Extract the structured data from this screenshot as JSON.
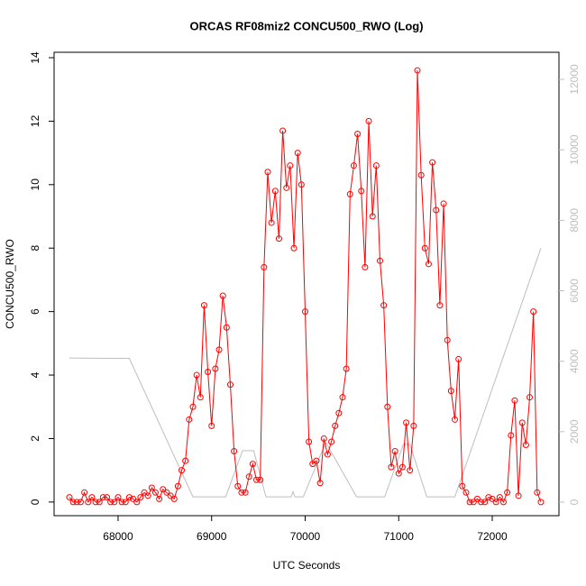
{
  "chart_data": {
    "type": "line",
    "title": "ORCAS RF08miz2 CONCU500_RWO (Log)",
    "x_label": "UTC Seconds",
    "y_label": "CONCU500_RWO",
    "xlim": [
      67316,
      72713
    ],
    "xticks": [
      68000,
      69000,
      70000,
      71000,
      72000
    ],
    "ylim": [
      -0.43,
      14.17
    ],
    "yticks": [
      0,
      2,
      4,
      6,
      8,
      10,
      12,
      14
    ],
    "y2lim": [
      -384,
      12768
    ],
    "y2ticks": [
      0,
      2000,
      4000,
      6000,
      8000,
      10000,
      12000
    ],
    "series": [
      {
        "color": "#ff0000",
        "markers": true,
        "x": [
          67480,
          67520,
          67560,
          67600,
          67640,
          67680,
          67720,
          67760,
          67800,
          67840,
          67880,
          67920,
          67960,
          68000,
          68040,
          68080,
          68120,
          68160,
          68200,
          68240,
          68280,
          68320,
          68360,
          68400,
          68440,
          68480,
          68520,
          68560,
          68600,
          68640,
          68680,
          68720,
          68760,
          68800,
          68840,
          68880,
          68920,
          68960,
          69000,
          69040,
          69080,
          69120,
          69160,
          69200,
          69240,
          69280,
          69320,
          69360,
          69400,
          69440,
          69480,
          69520,
          69560,
          69600,
          69640,
          69680,
          69720,
          69760,
          69800,
          69840,
          69880,
          69920,
          69960,
          70000,
          70040,
          70080,
          70120,
          70160,
          70200,
          70240,
          70280,
          70320,
          70360,
          70400,
          70440,
          70480,
          70520,
          70560,
          70600,
          70640,
          70680,
          70720,
          70760,
          70800,
          70840,
          70880,
          70920,
          70960,
          71000,
          71040,
          71080,
          71120,
          71160,
          71200,
          71240,
          71280,
          71320,
          71360,
          71400,
          71440,
          71480,
          71520,
          71560,
          71600,
          71640,
          71680,
          71720,
          71760,
          71800,
          71840,
          71880,
          71920,
          71960,
          72000,
          72040,
          72080,
          72120,
          72160,
          72200,
          72240,
          72280,
          72320,
          72360,
          72400,
          72440,
          72480,
          72520
        ],
        "values": [
          0.15,
          0,
          0,
          0,
          0.3,
          0,
          0.15,
          0,
          0,
          0.15,
          0.15,
          0,
          0,
          0.15,
          0,
          0,
          0.15,
          0.1,
          0,
          0.15,
          0.3,
          0.2,
          0.45,
          0.3,
          0.1,
          0.4,
          0.3,
          0.2,
          0.1,
          0.5,
          1.0,
          1.3,
          2.6,
          3.0,
          4.0,
          3.3,
          6.2,
          4.1,
          2.4,
          4.2,
          4.8,
          6.5,
          5.5,
          3.7,
          1.6,
          0.5,
          0.3,
          0.3,
          0.8,
          1.2,
          0.7,
          0.7,
          7.4,
          10.4,
          8.8,
          9.8,
          8.3,
          11.7,
          9.9,
          10.6,
          8.0,
          11.0,
          10.0,
          6.0,
          1.9,
          1.2,
          1.3,
          0.6,
          2.0,
          1.5,
          1.9,
          2.4,
          2.8,
          3.3,
          4.2,
          9.7,
          10.6,
          11.6,
          9.8,
          7.4,
          12.0,
          9.0,
          10.6,
          7.6,
          6.2,
          3.0,
          1.1,
          1.6,
          0.9,
          1.1,
          2.5,
          1.0,
          2.4,
          13.6,
          10.3,
          8.0,
          7.5,
          10.7,
          9.2,
          6.2,
          9.4,
          5.1,
          3.5,
          2.6,
          4.5,
          0.5,
          0.3,
          0,
          0,
          0.1,
          0,
          0,
          0.15,
          0.1,
          0,
          0.15,
          0,
          0.3,
          2.1,
          3.2,
          0.2,
          2.5,
          1.8,
          3.3,
          6.0,
          0.3,
          0
        ]
      },
      {
        "color": "#bebebe",
        "markers": false,
        "axis": "y2",
        "x": [
          67480,
          68120,
          68800,
          69150,
          69330,
          69450,
          69580,
          69850,
          69870,
          69890,
          69980,
          70220,
          70550,
          70850,
          71050,
          71120,
          71300,
          71600,
          72520
        ],
        "values": [
          4090,
          4080,
          150,
          150,
          1460,
          1460,
          150,
          150,
          300,
          150,
          150,
          1700,
          150,
          150,
          1640,
          1640,
          150,
          150,
          7210
        ]
      }
    ]
  }
}
